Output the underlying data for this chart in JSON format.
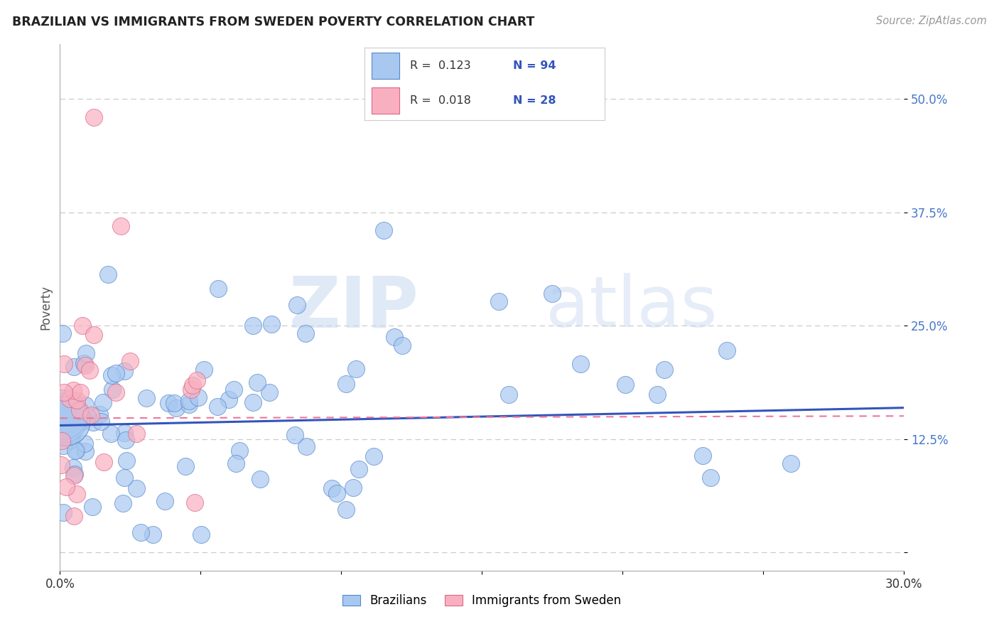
{
  "title": "BRAZILIAN VS IMMIGRANTS FROM SWEDEN POVERTY CORRELATION CHART",
  "source": "Source: ZipAtlas.com",
  "ylabel_label": "Poverty",
  "x_min": 0.0,
  "x_max": 0.3,
  "y_min": -0.02,
  "y_max": 0.56,
  "y_ticks": [
    0.0,
    0.125,
    0.25,
    0.375,
    0.5
  ],
  "y_tick_labels": [
    "",
    "12.5%",
    "25.0%",
    "37.5%",
    "50.0%"
  ],
  "brazil_color": "#a8c8f0",
  "brazil_edge_color": "#5588cc",
  "sweden_color": "#f8b0c0",
  "sweden_edge_color": "#dd6688",
  "brazil_R": 0.123,
  "brazil_N": 94,
  "sweden_R": 0.018,
  "sweden_N": 28,
  "brazil_line_color": "#3355bb",
  "sweden_line_color": "#ee7799",
  "legend_brazil_label": "Brazilians",
  "legend_sweden_label": "Immigrants from Sweden",
  "watermark_zip": "ZIP",
  "watermark_atlas": "atlas",
  "point_size": 300,
  "large_point_size": 2500,
  "brazil_line_intercept": 0.14,
  "brazil_line_slope": 0.065,
  "sweden_line_intercept": 0.148,
  "sweden_line_slope": 0.008
}
